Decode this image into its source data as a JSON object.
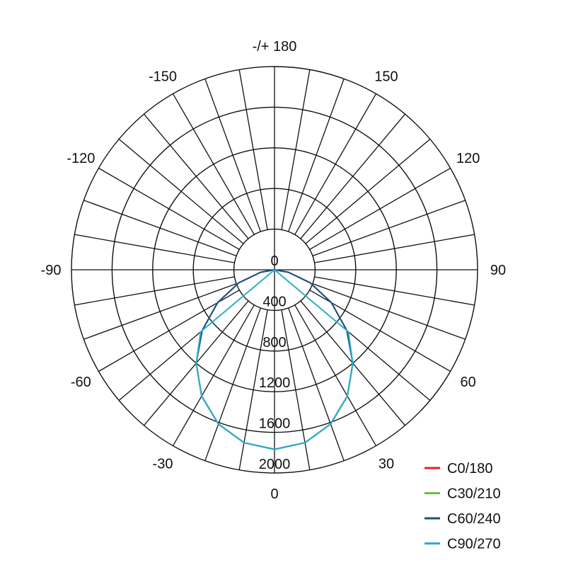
{
  "chart_data": {
    "type": "polar",
    "title": "",
    "angle_labels": [
      "0",
      "30",
      "60",
      "90",
      "120",
      "150",
      "-/+ 180",
      "-150",
      "-120",
      "-90",
      "-60",
      "-30"
    ],
    "angle_label_values": [
      0,
      30,
      60,
      90,
      120,
      150,
      180,
      -150,
      -120,
      -90,
      -60,
      -30
    ],
    "radial_ticks": [
      0,
      400,
      800,
      1200,
      1600,
      2000
    ],
    "radial_tick_labels": [
      "0",
      "400",
      "800",
      "1200",
      "1600",
      "2000"
    ],
    "rlim": [
      0,
      2000
    ],
    "spoke_step_deg": 10,
    "grid": true,
    "legend_position": "bottom-right",
    "gamma": [
      -90,
      -80,
      -70,
      -60,
      -50,
      -40,
      -30,
      -20,
      -10,
      0,
      10,
      20,
      30,
      40,
      50,
      60,
      70,
      80,
      90
    ],
    "series": [
      {
        "name": "C0/180",
        "color": "#e3232b",
        "values": [
          0,
          139,
          373,
          647,
          931,
          1200,
          1435,
          1615,
          1728,
          1767,
          1728,
          1615,
          1435,
          1200,
          931,
          647,
          373,
          139,
          0
        ]
      },
      {
        "name": "C30/210",
        "color": "#6abf4b",
        "values": [
          0,
          139,
          373,
          647,
          931,
          1200,
          1435,
          1615,
          1728,
          1767,
          1728,
          1615,
          1435,
          1200,
          931,
          647,
          373,
          139,
          0
        ]
      },
      {
        "name": "C60/240",
        "color": "#1d4e89",
        "values": [
          0,
          139,
          373,
          647,
          931,
          1200,
          1435,
          1615,
          1728,
          1767,
          1728,
          1615,
          1435,
          1200,
          931,
          647,
          373,
          139,
          0
        ]
      },
      {
        "name": "C90/270",
        "color": "#2bb0c8",
        "values": [
          0,
          0,
          0,
          0,
          950,
          1200,
          1435,
          1615,
          1728,
          1767,
          1728,
          1615,
          1435,
          1200,
          950,
          0,
          0,
          0,
          0
        ]
      }
    ]
  }
}
